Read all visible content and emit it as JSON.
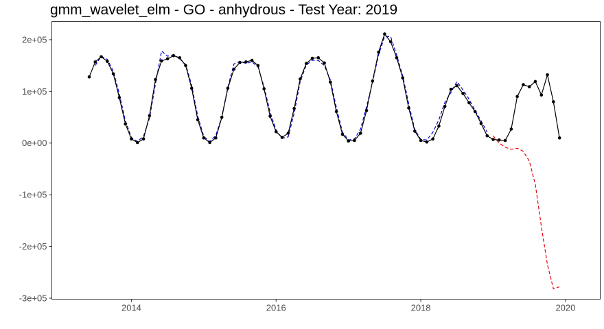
{
  "chart_data": {
    "type": "line",
    "title": "gmm_wavelet_elm - GO - anhydrous - Test Year: 2019",
    "xlabel": "",
    "ylabel": "",
    "grid": false,
    "legend": "none",
    "xlim": [
      2012.9,
      2020.48
    ],
    "ylim": [
      -302000,
      235000
    ],
    "x_ticks": [
      2014,
      2016,
      2018,
      2020
    ],
    "x_tick_labels": [
      "2014",
      "2016",
      "2018",
      "2020"
    ],
    "y_ticks": [
      200000,
      100000,
      0,
      -100000,
      -200000,
      -300000
    ],
    "y_tick_labels": [
      "2e+05",
      "1e+05",
      "0e+00",
      "-1e+05",
      "-2e+05",
      "-3e+05"
    ],
    "colors": {
      "actual": "#000000",
      "fitted": "#0000cc",
      "forecast": "#e8000b"
    },
    "series": [
      {
        "key": "actual",
        "style": "solid-with-points",
        "x": [
          2013.417,
          2013.5,
          2013.583,
          2013.667,
          2013.75,
          2013.833,
          2013.917,
          2014.0,
          2014.083,
          2014.167,
          2014.25,
          2014.333,
          2014.417,
          2014.5,
          2014.583,
          2014.667,
          2014.75,
          2014.833,
          2014.917,
          2015.0,
          2015.083,
          2015.167,
          2015.25,
          2015.333,
          2015.417,
          2015.5,
          2015.583,
          2015.667,
          2015.75,
          2015.833,
          2015.917,
          2016.0,
          2016.083,
          2016.167,
          2016.25,
          2016.333,
          2016.417,
          2016.5,
          2016.583,
          2016.667,
          2016.75,
          2016.833,
          2016.917,
          2017.0,
          2017.083,
          2017.167,
          2017.25,
          2017.333,
          2017.417,
          2017.5,
          2017.583,
          2017.667,
          2017.75,
          2017.833,
          2017.917,
          2018.0,
          2018.083,
          2018.167,
          2018.25,
          2018.333,
          2018.417,
          2018.5,
          2018.583,
          2018.667,
          2018.75,
          2018.833,
          2018.917,
          2019.0,
          2019.083,
          2019.167,
          2019.25,
          2019.333,
          2019.417,
          2019.5,
          2019.583,
          2019.667,
          2019.75,
          2019.833,
          2019.917
        ],
        "y": [
          128000,
          157000,
          167000,
          158000,
          134000,
          88000,
          37000,
          8000,
          1000,
          8000,
          53000,
          123000,
          159000,
          163000,
          169000,
          165000,
          150000,
          106000,
          45000,
          10000,
          1000,
          10000,
          50000,
          106000,
          143000,
          156000,
          157000,
          160000,
          150000,
          105000,
          52000,
          22000,
          11000,
          19000,
          67000,
          124000,
          154000,
          164000,
          165000,
          155000,
          118000,
          61000,
          17000,
          4000,
          5000,
          19000,
          63000,
          120000,
          176000,
          211000,
          196000,
          165000,
          126000,
          68000,
          23000,
          5000,
          2000,
          8000,
          33000,
          71000,
          104000,
          111000,
          96000,
          78000,
          61000,
          38000,
          14000,
          7000,
          6000,
          5000,
          27000,
          90000,
          113000,
          109000,
          119000,
          93000,
          132000,
          80000,
          10000
        ]
      },
      {
        "key": "fitted",
        "style": "dashed",
        "x": [
          2013.5,
          2013.583,
          2013.667,
          2013.75,
          2013.833,
          2013.917,
          2014.0,
          2014.083,
          2014.167,
          2014.25,
          2014.333,
          2014.417,
          2014.5,
          2014.583,
          2014.667,
          2014.75,
          2014.833,
          2014.917,
          2015.0,
          2015.083,
          2015.167,
          2015.25,
          2015.333,
          2015.417,
          2015.5,
          2015.583,
          2015.667,
          2015.75,
          2015.833,
          2015.917,
          2016.0,
          2016.083,
          2016.167,
          2016.25,
          2016.333,
          2016.417,
          2016.5,
          2016.583,
          2016.667,
          2016.75,
          2016.833,
          2016.917,
          2017.0,
          2017.083,
          2017.167,
          2017.25,
          2017.333,
          2017.417,
          2017.5,
          2017.583,
          2017.667,
          2017.75,
          2017.833,
          2017.917,
          2018.0,
          2018.083,
          2018.167,
          2018.25,
          2018.333,
          2018.417,
          2018.5,
          2018.583,
          2018.667,
          2018.75,
          2018.833,
          2018.917
        ],
        "y": [
          150000,
          168000,
          162000,
          139000,
          95000,
          43000,
          11000,
          3000,
          13000,
          48000,
          115000,
          178000,
          168000,
          171000,
          163000,
          152000,
          112000,
          52000,
          13000,
          3000,
          15000,
          51000,
          108000,
          153000,
          158000,
          154000,
          157000,
          147000,
          109000,
          60000,
          25000,
          9000,
          12000,
          58000,
          119000,
          151000,
          160000,
          160000,
          150000,
          122000,
          69000,
          21000,
          6000,
          8000,
          27000,
          70000,
          118000,
          171000,
          206000,
          206000,
          170000,
          130000,
          76000,
          26000,
          7000,
          6000,
          21000,
          45000,
          79000,
          98000,
          119000,
          103000,
          85000,
          63000,
          43000,
          21000
        ]
      },
      {
        "key": "forecast",
        "style": "dashed",
        "x": [
          2019.0,
          2019.083,
          2019.167,
          2019.25,
          2019.333,
          2019.417,
          2019.5,
          2019.583,
          2019.667,
          2019.75,
          2019.833,
          2019.917
        ],
        "y": [
          14000,
          0,
          -8000,
          -12000,
          -10000,
          -16000,
          -35000,
          -80000,
          -162000,
          -235000,
          -282000,
          -278000
        ]
      }
    ]
  }
}
